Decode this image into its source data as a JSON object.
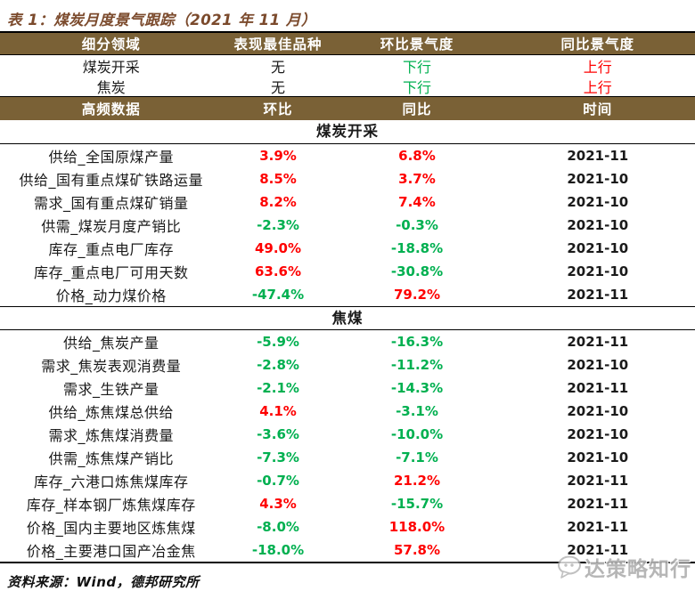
{
  "title": "表 1：煤炭月度景气跟踪（2021 年 11 月）",
  "colors": {
    "band_bg": "#7a6136",
    "title_color": "#7b4a2c",
    "positive": "#fe0000",
    "negative": "#00b050",
    "text": "#1a1a1a",
    "watermark": "#b0b0b0"
  },
  "summary_table": {
    "headers": [
      "细分领域",
      "表现最佳品种",
      "环比景气度",
      "同比景气度"
    ],
    "rows": [
      {
        "field": "煤炭开采",
        "best": "无",
        "mom": {
          "label": "下行",
          "dir": "down"
        },
        "yoy": {
          "label": "上行",
          "dir": "up"
        }
      },
      {
        "field": "焦炭",
        "best": "无",
        "mom": {
          "label": "下行",
          "dir": "down"
        },
        "yoy": {
          "label": "上行",
          "dir": "up"
        }
      }
    ]
  },
  "detail_table": {
    "headers": [
      "高频数据",
      "环比",
      "同比",
      "时间"
    ],
    "sections": [
      {
        "name": "煤炭开采",
        "rows": [
          [
            "供给_全国原煤产量",
            "3.9%",
            "6.8%",
            "2021-11"
          ],
          [
            "供给_国有重点煤矿铁路运量",
            "8.5%",
            "3.7%",
            "2021-10"
          ],
          [
            "需求_国有重点煤矿销量",
            "8.2%",
            "7.4%",
            "2021-10"
          ],
          [
            "供需_煤炭月度产销比",
            "-2.3%",
            "-0.3%",
            "2021-10"
          ],
          [
            "库存_重点电厂库存",
            "49.0%",
            "-18.8%",
            "2021-10"
          ],
          [
            "库存_重点电厂可用天数",
            "63.6%",
            "-30.8%",
            "2021-10"
          ],
          [
            "价格_动力煤价格",
            "-47.4%",
            "79.2%",
            "2021-11"
          ]
        ]
      },
      {
        "name": "焦煤",
        "rows": [
          [
            "供给_焦炭产量",
            "-5.9%",
            "-16.3%",
            "2021-11"
          ],
          [
            "需求_焦炭表观消费量",
            "-2.8%",
            "-11.2%",
            "2021-10"
          ],
          [
            "需求_生铁产量",
            "-2.1%",
            "-14.3%",
            "2021-11"
          ],
          [
            "供给_炼焦煤总供给",
            "4.1%",
            "-3.1%",
            "2021-10"
          ],
          [
            "需求_炼焦煤消费量",
            "-3.6%",
            "-10.0%",
            "2021-10"
          ],
          [
            "供需_炼焦煤产销比",
            "-7.3%",
            "-7.1%",
            "2021-10"
          ],
          [
            "库存_六港口炼焦煤库存",
            "-0.7%",
            "21.2%",
            "2021-11"
          ],
          [
            "库存_样本钢厂炼焦煤库存",
            "4.3%",
            "-15.7%",
            "2021-11"
          ],
          [
            "价格_国内主要地区炼焦煤",
            "-8.0%",
            "118.0%",
            "2021-11"
          ],
          [
            "价格_主要港口国产冶金焦",
            "-18.0%",
            "57.8%",
            "2021-11"
          ]
        ]
      }
    ]
  },
  "footer": "资料来源：Wind，德邦研究所",
  "watermark": {
    "text": "达策略知行",
    "icon": "chat-bubble"
  }
}
